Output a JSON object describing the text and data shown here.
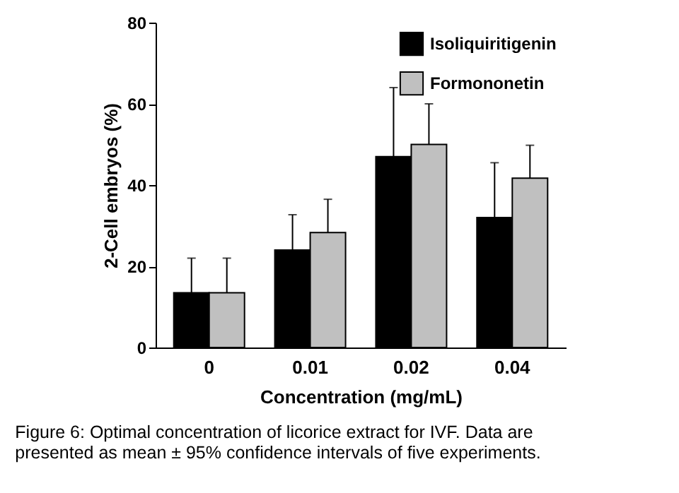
{
  "chart_data": {
    "type": "bar",
    "xlabel": "Concentration (mg/mL)",
    "ylabel": "2-Cell embryos (%)",
    "categories": [
      "0",
      "0.01",
      "0.02",
      "0.04"
    ],
    "series": [
      {
        "name": "Isoliquiritigenin",
        "color": "#000000",
        "values": [
          13.5,
          24,
          47,
          32
        ],
        "errors": [
          [
            13.5,
            22
          ],
          [
            24,
            32.7
          ],
          [
            47,
            64
          ],
          [
            32,
            45.5
          ]
        ]
      },
      {
        "name": "Formononetin",
        "color": "#c0c0c0",
        "values": [
          13.5,
          28.3,
          50,
          41.7
        ],
        "errors": [
          [
            13.5,
            22
          ],
          [
            28.3,
            36.5
          ],
          [
            50,
            60
          ],
          [
            41.7,
            49.8
          ]
        ]
      }
    ],
    "ylim": [
      0,
      80
    ],
    "yticks": [
      0,
      20,
      40,
      60,
      80
    ],
    "grid": false,
    "legend": "top right",
    "annotations": [
      "Figure 6: Optimal concentration of licorice extract for IVF. Data are presented as mean ± 95% confidence intervals of five experiments."
    ]
  }
}
